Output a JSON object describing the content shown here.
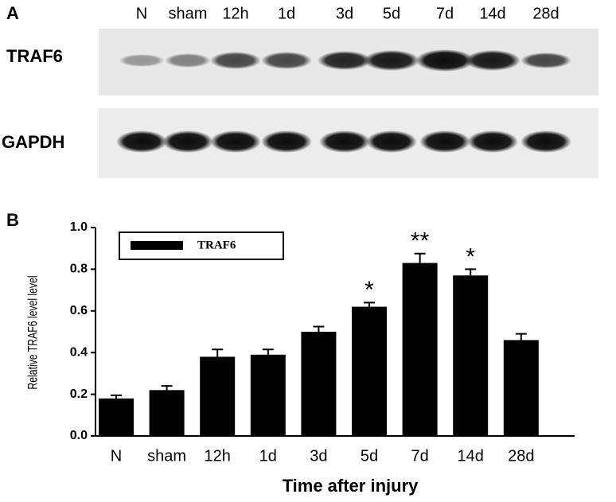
{
  "panel_a": {
    "letter": "A",
    "lanes": [
      "N",
      "sham",
      "12h",
      "1d",
      "3d",
      "5d",
      "7d",
      "14d",
      "28d"
    ],
    "rows": [
      "TRAF6",
      "GAPDH"
    ]
  },
  "chart_data": {
    "type": "bar",
    "panel": "B",
    "categories": [
      "N",
      "sham",
      "12h",
      "1d",
      "3d",
      "5d",
      "7d",
      "14d",
      "28d"
    ],
    "series": [
      {
        "name": "TRAF6",
        "color": "#000000",
        "values": [
          0.18,
          0.22,
          0.38,
          0.39,
          0.5,
          0.62,
          0.83,
          0.77,
          0.46
        ],
        "errors": [
          0.015,
          0.02,
          0.035,
          0.025,
          0.025,
          0.02,
          0.045,
          0.03,
          0.03
        ]
      }
    ],
    "annotations": [
      null,
      null,
      null,
      null,
      null,
      "*",
      "**",
      "*",
      null
    ],
    "ylim": [
      0,
      1.0
    ],
    "yticks": [
      {
        "value": 0,
        "label": "0.0"
      },
      0.2,
      0.4,
      0.6,
      0.8,
      {
        "value": 1.0,
        "label": "1.0"
      }
    ],
    "y_label": "Relative TRAF6 level level",
    "x_label": "Time after injury",
    "grid": false
  }
}
